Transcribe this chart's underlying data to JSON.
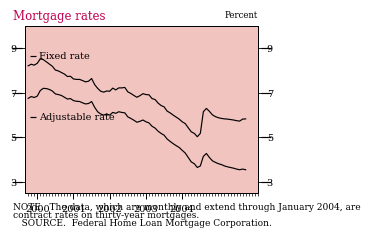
{
  "title": "Mortgage rates",
  "ylabel": "Percent",
  "background_color": "#f2c4c0",
  "outer_background": "#ffffff",
  "title_color": "#c0004e",
  "ylim": [
    2.5,
    10.0
  ],
  "yticks": [
    3,
    5,
    7,
    9
  ],
  "note_line1": "NOTE.  The data, which are monthly and extend through January 2004, are",
  "note_line2": "contract rates on thirty-year mortgages.",
  "note_line3": "   SOURCE.  Federal Home Loan Mortgage Corporation.",
  "fixed_rate": [
    8.21,
    8.28,
    8.24,
    8.32,
    8.52,
    8.49,
    8.39,
    8.29,
    8.19,
    8.02,
    7.98,
    7.91,
    7.84,
    7.73,
    7.74,
    7.62,
    7.6,
    7.6,
    7.55,
    7.49,
    7.52,
    7.64,
    7.37,
    7.2,
    7.07,
    7.03,
    7.08,
    7.07,
    7.21,
    7.13,
    7.22,
    7.22,
    7.24,
    7.04,
    6.97,
    6.88,
    6.8,
    6.87,
    6.96,
    6.92,
    6.91,
    6.74,
    6.7,
    6.54,
    6.43,
    6.37,
    6.18,
    6.1,
    6.0,
    5.91,
    5.82,
    5.7,
    5.62,
    5.43,
    5.25,
    5.18,
    5.03,
    5.18,
    6.15,
    6.3,
    6.17,
    6.01,
    5.93,
    5.88,
    5.85,
    5.83,
    5.82,
    5.8,
    5.78,
    5.75,
    5.73,
    5.82,
    5.83
  ],
  "adjustable_rate": [
    6.75,
    6.83,
    6.79,
    6.85,
    7.1,
    7.2,
    7.19,
    7.15,
    7.08,
    6.95,
    6.92,
    6.88,
    6.8,
    6.72,
    6.74,
    6.65,
    6.62,
    6.61,
    6.55,
    6.5,
    6.52,
    6.61,
    6.35,
    6.15,
    6.05,
    6.0,
    6.05,
    6.0,
    6.12,
    6.08,
    6.15,
    6.12,
    6.1,
    5.92,
    5.85,
    5.77,
    5.68,
    5.72,
    5.78,
    5.7,
    5.65,
    5.5,
    5.42,
    5.28,
    5.18,
    5.1,
    4.93,
    4.82,
    4.72,
    4.63,
    4.55,
    4.42,
    4.3,
    4.1,
    3.9,
    3.82,
    3.65,
    3.72,
    4.15,
    4.28,
    4.1,
    3.95,
    3.88,
    3.82,
    3.78,
    3.72,
    3.68,
    3.65,
    3.62,
    3.58,
    3.55,
    3.58,
    3.55
  ],
  "start_year": 1999.75,
  "xlim": [
    1999.67,
    2004.25
  ],
  "major_xticks": [
    2000,
    2001,
    2002,
    2003,
    2004
  ],
  "label_fixed": "Fixed rate",
  "label_adjustable": "Adjustable rate",
  "line_color": "#000000",
  "tick_label_fontsize": 7.0,
  "note_fontsize": 6.5
}
